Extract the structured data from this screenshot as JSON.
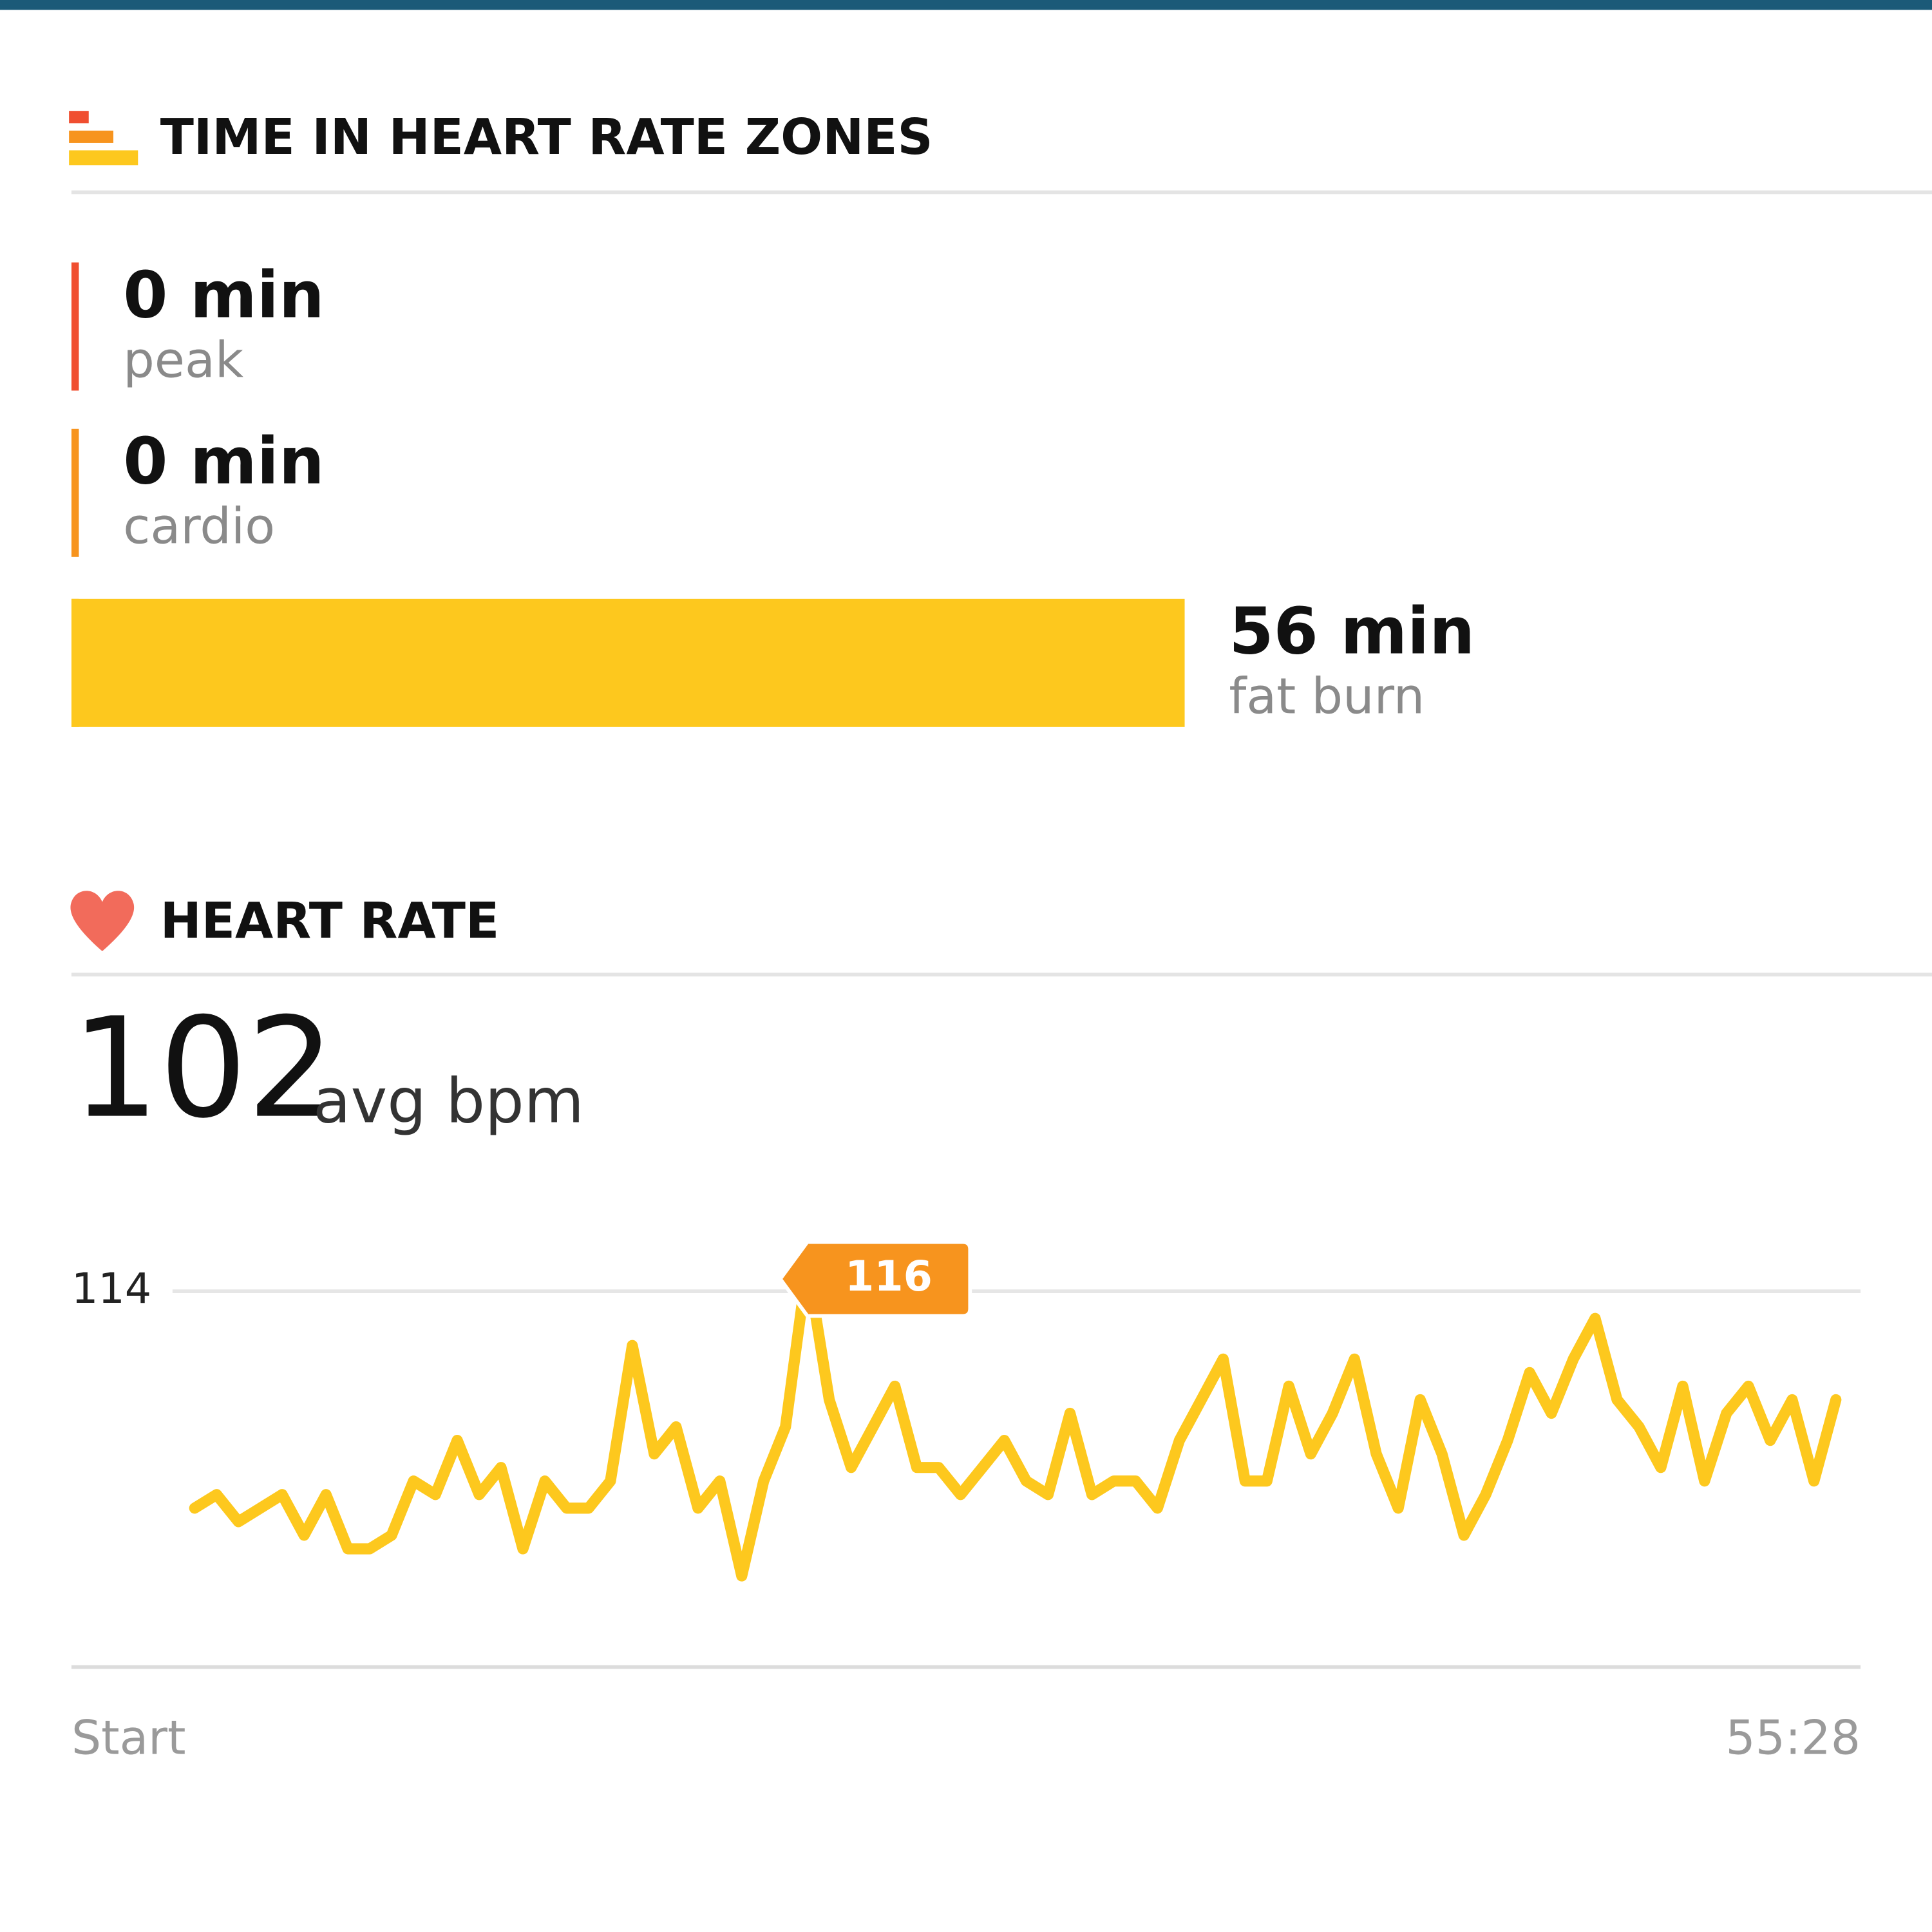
{
  "chart_data": [
    {
      "type": "bar",
      "orientation": "horizontal",
      "title": "TIME IN HEART RATE ZONES",
      "categories": [
        "peak",
        "cardio",
        "fat burn"
      ],
      "values": [
        0,
        0,
        56
      ],
      "value_labels": [
        "0 min",
        "0 min",
        "56 min"
      ],
      "colors": [
        "#f04e30",
        "#f7941e",
        "#fdc81e"
      ],
      "xlim": [
        0,
        90
      ]
    },
    {
      "type": "line",
      "title": "HEART RATE",
      "summary": 102,
      "summary_unit": "avg bpm",
      "x_axis_labels": [
        "Start",
        "55:28"
      ],
      "ylim": [
        86,
        118
      ],
      "yticks": [
        114
      ],
      "grid": true,
      "color": "#fdc81e",
      "annotation_color": "#f7941e",
      "values": [
        98,
        99,
        97,
        98,
        99,
        96,
        99,
        95,
        95,
        96,
        100,
        99,
        103,
        99,
        101,
        95,
        100,
        98,
        98,
        100,
        110,
        102,
        104,
        98,
        100,
        93,
        100,
        104,
        116,
        106,
        101,
        104,
        107,
        101,
        101,
        99,
        101,
        103,
        100,
        99,
        105,
        99,
        100,
        100,
        98,
        103,
        106,
        109,
        100,
        100,
        107,
        102,
        105,
        109,
        102,
        98,
        106,
        102,
        96,
        99,
        103,
        108,
        105,
        109,
        112,
        106,
        104,
        101,
        107,
        100,
        105,
        107,
        103,
        106,
        100,
        106
      ],
      "value_labels": [
        null,
        null,
        null,
        null,
        null,
        null,
        null,
        null,
        null,
        null,
        null,
        null,
        null,
        null,
        null,
        null,
        null,
        null,
        null,
        null,
        null,
        null,
        null,
        null,
        null,
        null,
        null,
        null,
        "116",
        null,
        null,
        null,
        null,
        null,
        null,
        null,
        null,
        null,
        null,
        null,
        null,
        null,
        null,
        null,
        null,
        null,
        null,
        null,
        null,
        null,
        null,
        null,
        null,
        null,
        null,
        null,
        null,
        null,
        null,
        null,
        null,
        null,
        null,
        null,
        null,
        null,
        null,
        null,
        null,
        null,
        null,
        null,
        null,
        null,
        null,
        null
      ]
    }
  ]
}
